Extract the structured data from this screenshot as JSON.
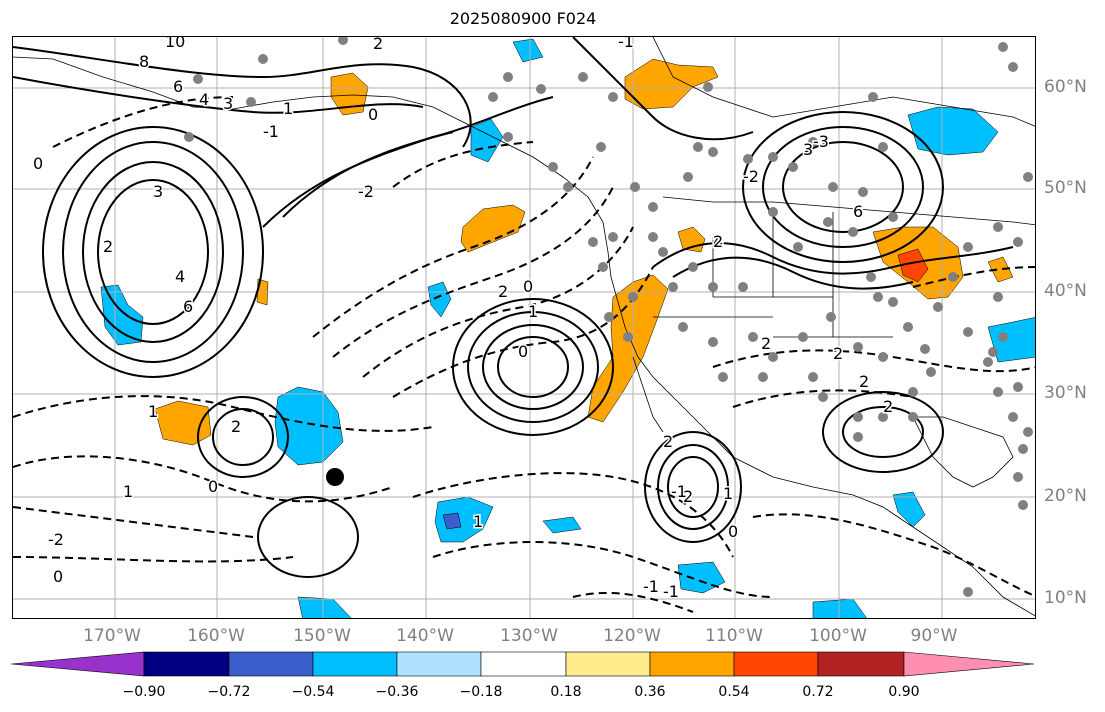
{
  "title": "2025080900 F024",
  "lon_labels": [
    "170°W",
    "160°W",
    "150°W",
    "140°W",
    "130°W",
    "120°W",
    "110°W",
    "100°W",
    "90°W"
  ],
  "lat_labels": [
    "60°N",
    "50°N",
    "40°N",
    "30°N",
    "20°N",
    "10°N"
  ],
  "colorbar": {
    "ticks": [
      "−0.90",
      "−0.72",
      "−0.54",
      "−0.36",
      "−0.18",
      "0.18",
      "0.36",
      "0.54",
      "0.72",
      "0.90"
    ],
    "colors": [
      "#9932cc",
      "#000080",
      "#3a5fcd",
      "#00bfff",
      "#b0e2ff",
      "#ffffff",
      "#ffec8b",
      "#ffa500",
      "#ff4500",
      "#b22222",
      "#ff8fb1"
    ]
  },
  "contour_labels": [
    "10",
    "8",
    "6",
    "4",
    "3",
    "2",
    "1",
    "0",
    "-1",
    "-2",
    "3",
    "4",
    "6",
    "2",
    "1",
    "0",
    "-1",
    "-2",
    "-3",
    "3",
    "6",
    "4",
    "2",
    "2",
    "2",
    "0",
    "2",
    "2",
    "0",
    "1",
    "2",
    "0",
    "1",
    "-1",
    "2",
    "1",
    "2",
    "0",
    "-1",
    "-2",
    "0",
    "-1",
    "2",
    "1"
  ],
  "colors": {
    "positive": "#ffa500",
    "negative": "#00bfff",
    "strong_positive": "#ff4500",
    "strong_negative": "#3a5fcd",
    "grid": "#b0b0b0",
    "tick_label": "#808080"
  }
}
